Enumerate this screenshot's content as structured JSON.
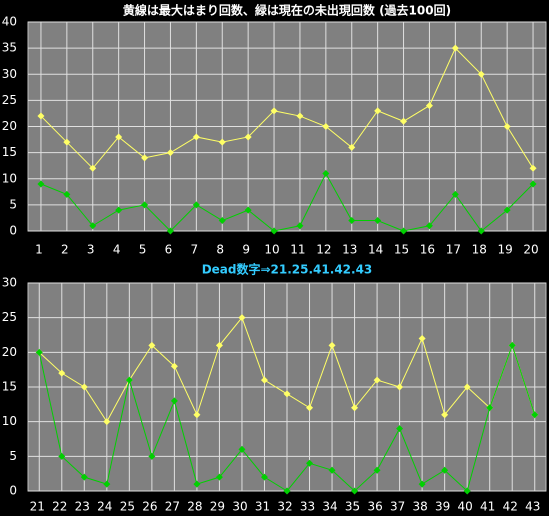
{
  "chart_data": [
    {
      "type": "line",
      "title": "黄線は最大はまり回数、緑は現在の未出現回数 (過去100回)",
      "title_color": "#ffffff",
      "categories": [
        "1",
        "2",
        "3",
        "4",
        "5",
        "6",
        "7",
        "8",
        "9",
        "10",
        "11",
        "12",
        "13",
        "14",
        "15",
        "16",
        "17",
        "18",
        "19",
        "20"
      ],
      "series": [
        {
          "color": "#ffff66",
          "values": [
            22,
            17,
            12,
            18,
            14,
            15,
            18,
            17,
            18,
            23,
            22,
            20,
            16,
            23,
            21,
            24,
            35,
            30,
            20,
            12
          ]
        },
        {
          "color": "#00d000",
          "values": [
            9,
            7,
            1,
            4,
            5,
            0,
            5,
            2,
            4,
            0,
            1,
            11,
            2,
            2,
            0,
            1,
            7,
            0,
            4,
            9
          ]
        }
      ],
      "ylim": [
        0,
        40
      ],
      "yticks": [
        0,
        5,
        10,
        15,
        20,
        25,
        30,
        35,
        40
      ],
      "grid": true
    },
    {
      "type": "line",
      "title": "Dead数字⇒21.25.41.42.43",
      "title_color": "#33ccff",
      "categories": [
        "21",
        "22",
        "23",
        "24",
        "25",
        "26",
        "27",
        "28",
        "29",
        "30",
        "31",
        "32",
        "33",
        "34",
        "35",
        "36",
        "37",
        "38",
        "39",
        "40",
        "41",
        "42",
        "43"
      ],
      "series": [
        {
          "color": "#ffff66",
          "values": [
            20,
            17,
            15,
            10,
            16,
            21,
            18,
            11,
            21,
            25,
            16,
            14,
            12,
            21,
            12,
            16,
            15,
            22,
            11,
            15,
            12,
            21,
            11
          ]
        },
        {
          "color": "#00d000",
          "values": [
            20,
            5,
            2,
            1,
            16,
            5,
            13,
            1,
            2,
            6,
            2,
            0,
            4,
            3,
            0,
            3,
            9,
            1,
            3,
            0,
            12,
            21,
            11
          ]
        }
      ],
      "ylim": [
        0,
        30
      ],
      "yticks": [
        0,
        5,
        10,
        15,
        20,
        25,
        30
      ],
      "grid": true
    }
  ]
}
